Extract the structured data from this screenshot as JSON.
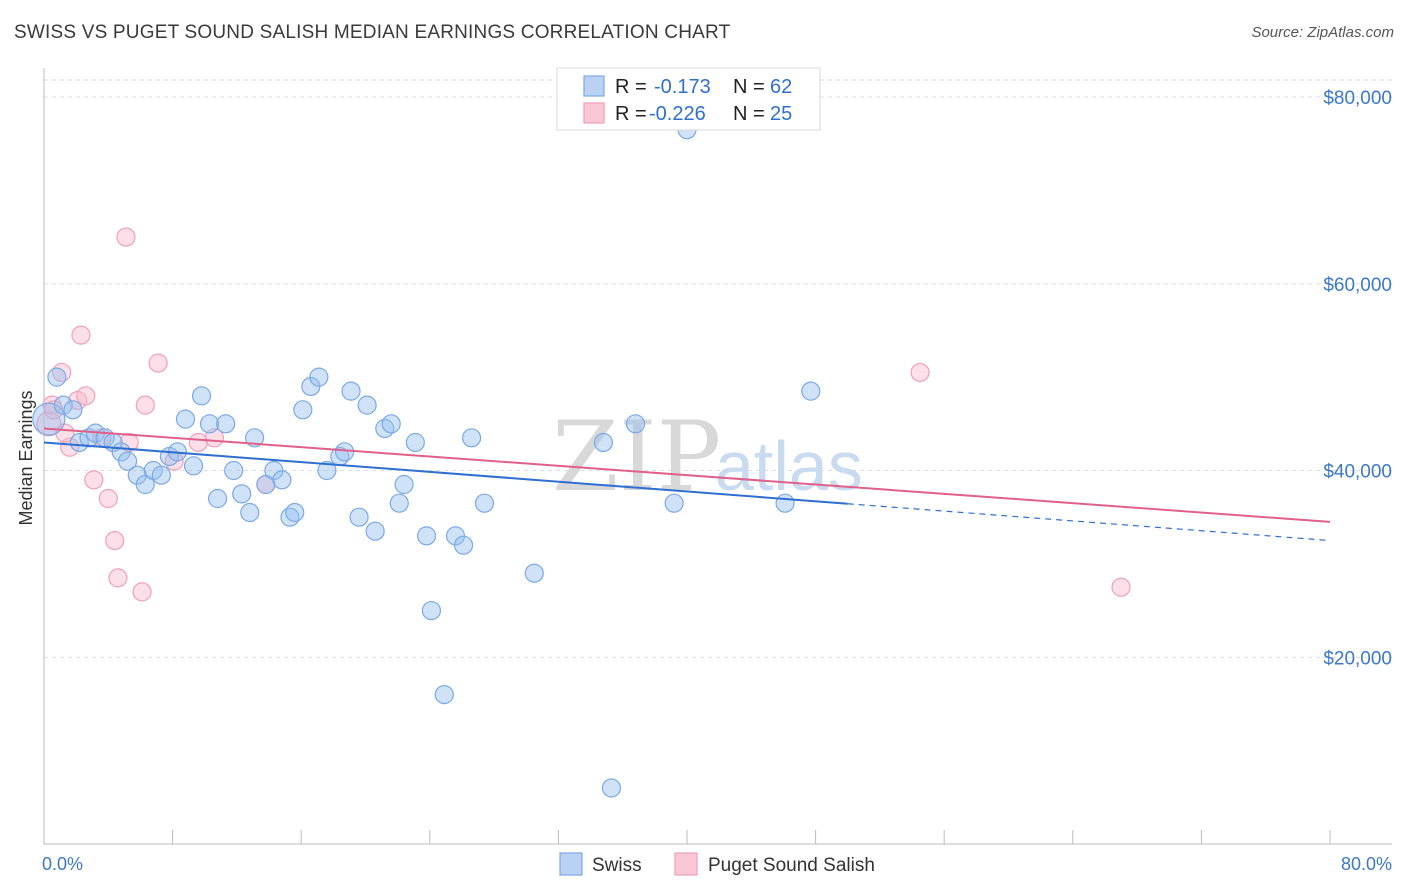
{
  "title": "SWISS VS PUGET SOUND SALISH MEDIAN EARNINGS CORRELATION CHART",
  "source": "Source: ZipAtlas.com",
  "watermark": {
    "zip": "ZIP",
    "atlas": "atlas"
  },
  "colors": {
    "swiss": "#7aaae6",
    "swiss_line": "#2f6fd0",
    "salish": "#f0a0b8",
    "salish_line": "#e0608a",
    "axis_text": "#3c78c8"
  },
  "legend_box": {
    "rows": [
      {
        "series": "Swiss",
        "r_label": "R =",
        "r_value": "-0.173",
        "n_label": "N =",
        "n_value": "62"
      },
      {
        "series": "Puget Sound Salish",
        "r_label": "R =",
        "r_value": "-0.226",
        "n_label": "N =",
        "n_value": "25"
      }
    ]
  },
  "bottom_legend": [
    "Swiss",
    "Puget Sound Salish"
  ],
  "chart_data": {
    "type": "scatter",
    "title": "SWISS VS PUGET SOUND SALISH MEDIAN EARNINGS CORRELATION CHART",
    "xlabel": "",
    "ylabel": "Median Earnings",
    "xlim": [
      0,
      80
    ],
    "ylim": [
      0,
      82000
    ],
    "x_tick_labels": [
      "0.0%",
      "80.0%"
    ],
    "y_ticks": [
      20000,
      40000,
      60000,
      80000
    ],
    "y_tick_labels": [
      "$20,000",
      "$40,000",
      "$60,000",
      "$80,000"
    ],
    "grid": true,
    "series": [
      {
        "name": "Swiss",
        "r": -0.173,
        "n": 62,
        "trend": {
          "x_start": 0,
          "y_start": 43000,
          "x_solid_end": 50,
          "x_end": 80,
          "y_end": 32500
        },
        "points": [
          [
            0.3,
            45500
          ],
          [
            0.8,
            50000
          ],
          [
            1.2,
            47000
          ],
          [
            1.8,
            46500
          ],
          [
            2.2,
            43000
          ],
          [
            2.8,
            43500
          ],
          [
            3.2,
            44000
          ],
          [
            3.8,
            43500
          ],
          [
            4.3,
            43000
          ],
          [
            4.8,
            42000
          ],
          [
            5.2,
            41000
          ],
          [
            5.8,
            39500
          ],
          [
            6.3,
            38500
          ],
          [
            6.8,
            40000
          ],
          [
            7.3,
            39500
          ],
          [
            7.8,
            41500
          ],
          [
            8.3,
            42000
          ],
          [
            8.8,
            45500
          ],
          [
            9.3,
            40500
          ],
          [
            9.8,
            48000
          ],
          [
            10.3,
            45000
          ],
          [
            10.8,
            37000
          ],
          [
            11.3,
            45000
          ],
          [
            11.8,
            40000
          ],
          [
            12.3,
            37500
          ],
          [
            12.8,
            35500
          ],
          [
            13.1,
            43500
          ],
          [
            13.8,
            38500
          ],
          [
            14.3,
            40000
          ],
          [
            14.8,
            39000
          ],
          [
            15.3,
            35000
          ],
          [
            15.6,
            35500
          ],
          [
            16.1,
            46500
          ],
          [
            16.6,
            49000
          ],
          [
            17.1,
            50000
          ],
          [
            17.6,
            40000
          ],
          [
            18.4,
            41500
          ],
          [
            18.7,
            42000
          ],
          [
            19.1,
            48500
          ],
          [
            19.6,
            35000
          ],
          [
            20.1,
            47000
          ],
          [
            20.6,
            33500
          ],
          [
            21.2,
            44500
          ],
          [
            21.6,
            45000
          ],
          [
            22.1,
            36500
          ],
          [
            22.4,
            38500
          ],
          [
            23.1,
            43000
          ],
          [
            23.8,
            33000
          ],
          [
            24.1,
            25000
          ],
          [
            24.9,
            16000
          ],
          [
            25.6,
            33000
          ],
          [
            26.1,
            32000
          ],
          [
            26.6,
            43500
          ],
          [
            27.4,
            36500
          ],
          [
            30.5,
            29000
          ],
          [
            34.8,
            43000
          ],
          [
            35.3,
            6000
          ],
          [
            36.8,
            45000
          ],
          [
            39.2,
            36500
          ],
          [
            46.1,
            36500
          ],
          [
            47.7,
            48500
          ],
          [
            40.0,
            76500
          ]
        ]
      },
      {
        "name": "Puget Sound Salish",
        "r": -0.226,
        "n": 25,
        "trend": {
          "x_start": 0,
          "y_start": 44500,
          "x_end": 80,
          "y_end": 34500
        },
        "points": [
          [
            0.3,
            45000
          ],
          [
            0.5,
            47000
          ],
          [
            1.1,
            50500
          ],
          [
            1.6,
            42500
          ],
          [
            2.1,
            47500
          ],
          [
            2.3,
            54500
          ],
          [
            2.6,
            48000
          ],
          [
            3.1,
            39000
          ],
          [
            3.6,
            43500
          ],
          [
            4.0,
            37000
          ],
          [
            4.4,
            32500
          ],
          [
            4.6,
            28500
          ],
          [
            5.3,
            43000
          ],
          [
            6.1,
            27000
          ],
          [
            6.3,
            47000
          ],
          [
            7.1,
            51500
          ],
          [
            8.1,
            41000
          ],
          [
            9.6,
            43000
          ],
          [
            10.6,
            43500
          ],
          [
            13.8,
            38500
          ],
          [
            5.1,
            65000
          ],
          [
            0.6,
            46500
          ],
          [
            1.3,
            44000
          ],
          [
            54.5,
            50500
          ],
          [
            67.0,
            27500
          ]
        ]
      }
    ]
  }
}
